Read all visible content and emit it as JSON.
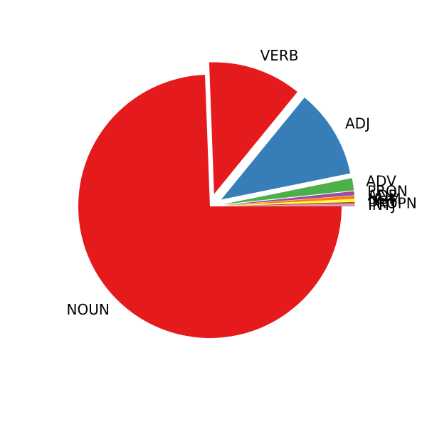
{
  "chart_data": {
    "type": "pie",
    "title": "",
    "start_angle_deg": 0,
    "direction": "clockwise",
    "slices": [
      {
        "label": "NOUN",
        "value": 74.4,
        "color": "#e41a1c",
        "explode": false
      },
      {
        "label": "VERB",
        "value": 11.5,
        "color": "#e41a1c",
        "explode": true
      },
      {
        "label": "ADJ",
        "value": 10.9,
        "color": "#377eb8",
        "explode": true
      },
      {
        "label": "ADV",
        "value": 1.5,
        "color": "#4daf4a",
        "explode": true
      },
      {
        "label": "PRON",
        "value": 0.5,
        "color": "#984ea3",
        "explode": true
      },
      {
        "label": "ADP",
        "value": 0.4,
        "color": "#ff7f00",
        "explode": true
      },
      {
        "label": "NUM",
        "value": 0.3,
        "color": "#ffff33",
        "explode": true
      },
      {
        "label": "DET",
        "value": 0.2,
        "color": "#a65628",
        "explode": true
      },
      {
        "label": "PROPN",
        "value": 0.2,
        "color": "#f781bf",
        "explode": true
      },
      {
        "label": "INTJ",
        "value": 0.1,
        "color": "#999999",
        "explode": true
      }
    ]
  }
}
